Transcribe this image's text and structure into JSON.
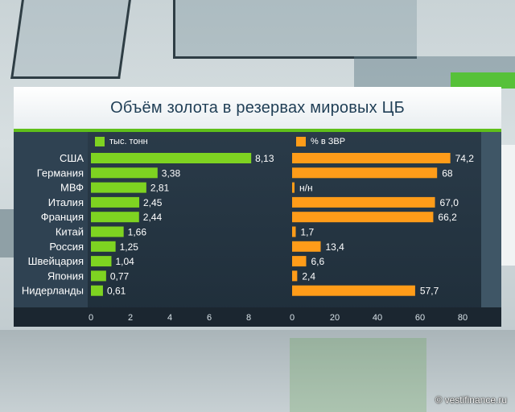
{
  "title": "Объём золота в резервах мировых ЦБ",
  "credit": "vestifinance.ru",
  "colors": {
    "green": "#7ed321",
    "orange": "#ff9c19",
    "label_white": "#ffffff"
  },
  "chart_data": [
    {
      "type": "bar",
      "orientation": "horizontal",
      "legend": "тыс. тонн",
      "categories": [
        "США",
        "Германия",
        "МВФ",
        "Италия",
        "Франция",
        "Китай",
        "Россия",
        "Швейцария",
        "Япония",
        "Нидерланды"
      ],
      "values": [
        8.13,
        3.38,
        2.81,
        2.45,
        2.44,
        1.66,
        1.25,
        1.04,
        0.77,
        0.61
      ],
      "value_labels": [
        "8,13",
        "3,38",
        "2,81",
        "2,45",
        "2,44",
        "1,66",
        "1,25",
        "1,04",
        "0,77",
        "0,61"
      ],
      "ticks": [
        "0",
        "2",
        "4",
        "6",
        "8"
      ],
      "xlim": [
        0,
        10
      ],
      "color": "#7ed321"
    },
    {
      "type": "bar",
      "orientation": "horizontal",
      "legend": "% в ЗВР",
      "categories": [
        "США",
        "Германия",
        "МВФ",
        "Италия",
        "Франция",
        "Китай",
        "Россия",
        "Швейцария",
        "Япония",
        "Нидерланды"
      ],
      "values": [
        74.2,
        68,
        0,
        67.0,
        66.2,
        1.7,
        13.4,
        6.6,
        2.4,
        57.7
      ],
      "value_labels": [
        "74,2",
        "68",
        "н/н",
        "67,0",
        "66,2",
        "1,7",
        "13,4",
        "6,6",
        "2,4",
        "57,7"
      ],
      "ticks": [
        "0",
        "20",
        "40",
        "60",
        "80"
      ],
      "xlim": [
        0,
        90
      ],
      "color": "#ff9c19"
    }
  ]
}
